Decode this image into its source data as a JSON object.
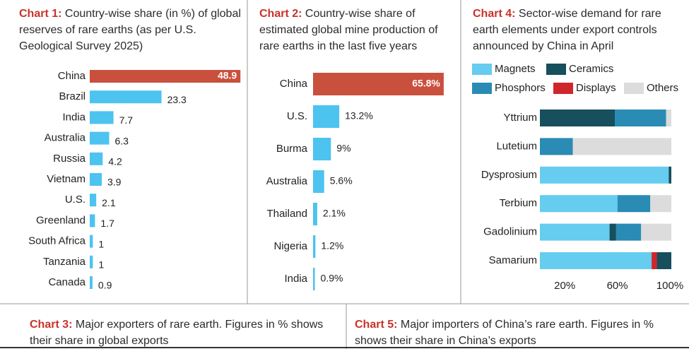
{
  "chart_data": [
    {
      "type": "bar",
      "orientation": "horizontal",
      "title_prefix": "Chart 1:",
      "title": "Country-wise share (in %) of global reserves of rare earths (as per U.S. Geological Survey 2025)",
      "categories": [
        "China",
        "Brazil",
        "India",
        "Australia",
        "Russia",
        "Vietnam",
        "U.S.",
        "Greenland",
        "South Africa",
        "Tanzania",
        "Canada"
      ],
      "values": [
        48.9,
        23.3,
        7.7,
        6.3,
        4.2,
        3.9,
        2.1,
        1.7,
        1,
        1,
        0.9
      ],
      "colors": [
        "#c9503c",
        "#4dc3ef",
        "#4dc3ef",
        "#4dc3ef",
        "#4dc3ef",
        "#4dc3ef",
        "#4dc3ef",
        "#4dc3ef",
        "#4dc3ef",
        "#4dc3ef",
        "#4dc3ef"
      ]
    },
    {
      "type": "bar",
      "orientation": "horizontal",
      "title_prefix": "Chart 2:",
      "title": "Country-wise share of estimated global mine production of rare earths in the last five years",
      "categories": [
        "China",
        "U.S.",
        "Burma",
        "Australia",
        "Thailand",
        "Nigeria",
        "India"
      ],
      "values": [
        65.8,
        13.2,
        9,
        5.6,
        2.1,
        1.2,
        0.9
      ],
      "value_labels": [
        "65.8%",
        "13.2%",
        "9%",
        "5.6%",
        "2.1%",
        "1.2%",
        "0.9%"
      ],
      "colors": [
        "#c9503c",
        "#4dc3ef",
        "#4dc3ef",
        "#4dc3ef",
        "#4dc3ef",
        "#4dc3ef",
        "#4dc3ef"
      ]
    },
    {
      "title_prefix": "Chart 3:",
      "title": "Major exporters of rare earth. Figures in % shows their share in global exports"
    },
    {
      "type": "stacked_bar",
      "orientation": "horizontal",
      "title_prefix": "Chart 4:",
      "title": "Sector-wise demand for rare earth elements under export controls announced by China in April",
      "categories": [
        "Yttrium",
        "Lutetium",
        "Dysprosium",
        "Terbium",
        "Gadolinium",
        "Samarium"
      ],
      "series": [
        {
          "name": "Magnets",
          "color": "#66ccf0",
          "values": [
            0,
            0,
            98,
            59,
            53,
            85
          ]
        },
        {
          "name": "Displays",
          "color": "#d0262b",
          "values": [
            0,
            0,
            0,
            0,
            0,
            4
          ]
        },
        {
          "name": "Ceramics",
          "color": "#174f5c",
          "values": [
            57,
            0,
            2,
            0,
            5,
            11
          ]
        },
        {
          "name": "Phosphors",
          "color": "#2a8bb5",
          "values": [
            39,
            25,
            0,
            25,
            19,
            0
          ]
        },
        {
          "name": "Others",
          "color": "#dcdcdc",
          "values": [
            4,
            75,
            0,
            16,
            23,
            0
          ]
        }
      ],
      "xlim": [
        0,
        100
      ],
      "xticks": [
        {
          "value": 20,
          "label": "20%"
        },
        {
          "value": 60,
          "label": "60%"
        },
        {
          "value": 100,
          "label": "100%"
        }
      ]
    },
    {
      "title_prefix": "Chart 5:",
      "title": "Major importers of China’s rare earth. Figures in % shows their share in China’s exports"
    }
  ]
}
